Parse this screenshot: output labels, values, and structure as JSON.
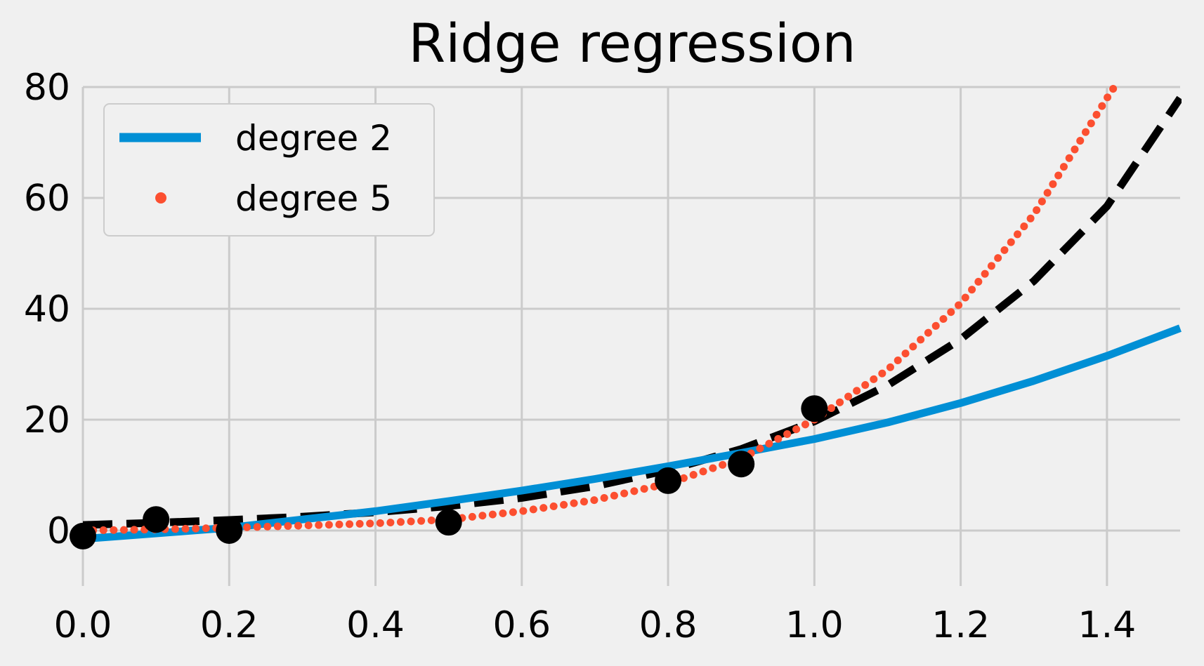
{
  "chart_data": {
    "type": "line",
    "title": "Ridge regression",
    "xlabel": "",
    "ylabel": "",
    "xlim": [
      0.0,
      1.5
    ],
    "ylim": [
      -10,
      80
    ],
    "x_ticks": [
      "0.0",
      "0.2",
      "0.4",
      "0.6",
      "0.8",
      "1.0",
      "1.2",
      "1.4"
    ],
    "y_ticks": [
      "0",
      "20",
      "40",
      "60",
      "80"
    ],
    "grid": true,
    "legend_placement": "top-left",
    "series": [
      {
        "name": "degree 2",
        "style": "solid",
        "color": "#008fd5",
        "x": [
          0.0,
          0.1,
          0.2,
          0.3,
          0.4,
          0.5,
          0.6,
          0.7,
          0.8,
          0.9,
          1.0,
          1.1,
          1.2,
          1.3,
          1.4,
          1.5
        ],
        "y": [
          -1.5,
          -0.5,
          0.5,
          2.0,
          3.5,
          5.3,
          7.2,
          9.3,
          11.6,
          14.0,
          16.5,
          19.5,
          23.0,
          27.0,
          31.5,
          36.5
        ]
      },
      {
        "name": "degree 5",
        "style": "dotted",
        "color": "#fc4f30",
        "x": [
          0.0,
          0.1,
          0.2,
          0.3,
          0.4,
          0.5,
          0.6,
          0.7,
          0.8,
          0.9,
          1.0,
          1.1,
          1.2,
          1.3,
          1.4,
          1.41
        ],
        "y": [
          0.0,
          0.2,
          0.5,
          0.9,
          1.3,
          2.0,
          3.5,
          5.5,
          8.5,
          13.0,
          20.0,
          29.0,
          41.0,
          57.0,
          78.0,
          80.0
        ]
      },
      {
        "name": "",
        "style": "dashed",
        "color": "#000000",
        "x": [
          0.0,
          0.1,
          0.2,
          0.3,
          0.4,
          0.5,
          0.6,
          0.7,
          0.8,
          0.9,
          1.0,
          1.1,
          1.2,
          1.3,
          1.4,
          1.5
        ],
        "y": [
          1.0,
          1.4,
          1.9,
          2.5,
          3.3,
          4.4,
          5.9,
          8.0,
          10.9,
          14.7,
          19.7,
          26.2,
          34.5,
          45.0,
          58.5,
          78.0
        ]
      }
    ],
    "points": {
      "color": "#000000",
      "x": [
        0.0,
        0.1,
        0.2,
        0.5,
        0.8,
        0.9,
        1.0
      ],
      "y": [
        -1.0,
        2.0,
        0.0,
        1.5,
        9.0,
        12.0,
        22.0
      ]
    }
  }
}
